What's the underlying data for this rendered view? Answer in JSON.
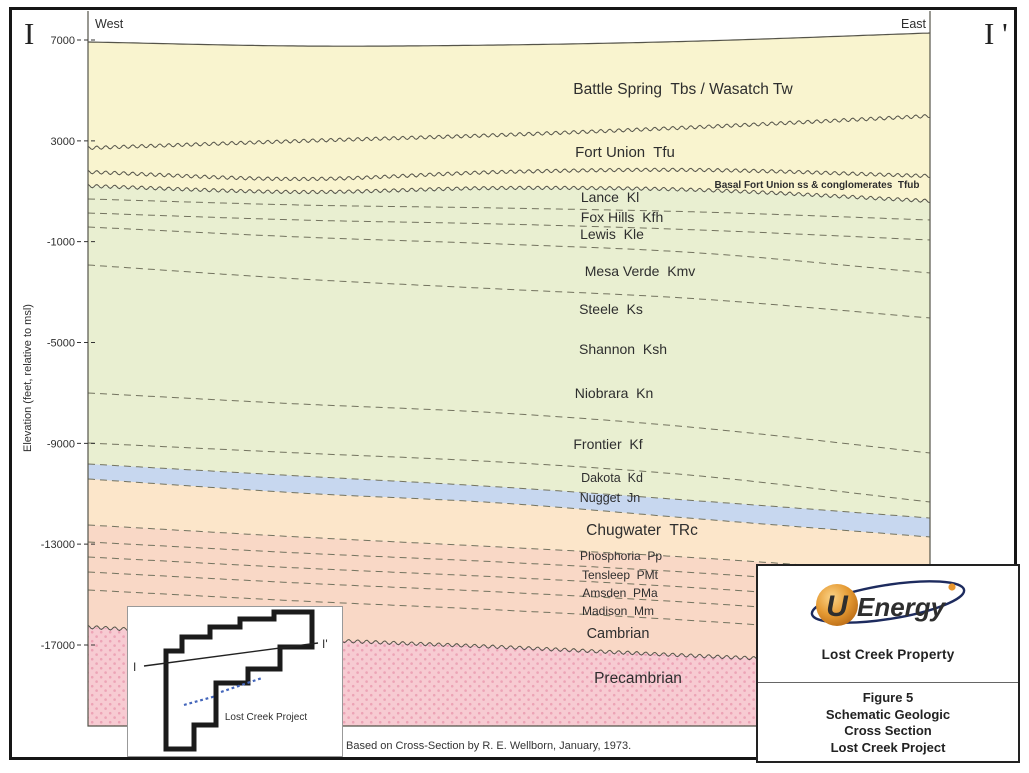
{
  "window": {
    "i_left": "I",
    "i_right": "I '"
  },
  "plot": {
    "west": "West",
    "east": "East"
  },
  "axis": {
    "title": "Elevation (feet, relative to msl)",
    "tick_values": [
      7000,
      3000,
      -1000,
      -5000,
      -9000,
      -13000,
      -17000
    ]
  },
  "formations": {
    "battle_spring": "Battle Spring  Tbs / Wasatch Tw",
    "fort_union": "Fort Union  Tfu",
    "basal_fu": "Basal Fort Union ss & conglomerates  Tfub",
    "lance": "Lance  Kl",
    "fox_hills": "Fox Hills  Kfh",
    "lewis": "Lewis  Kle",
    "mesa_verde": "Mesa Verde  Kmv",
    "steele": "Steele  Ks",
    "shannon": "Shannon  Ksh",
    "niobrara": "Niobrara  Kn",
    "frontier": "Frontier  Kf",
    "dakota": "Dakota  Kd",
    "nugget": "Nugget  Jn",
    "chugwater": "Chugwater  TRc",
    "phosphoria": "Phosphoria  Pp",
    "tensleep": "Tensleep  PMt",
    "amsden": "Amsden  PMa",
    "madison": "Madison  Mm",
    "cambrian": "Cambrian",
    "precambrian": "Precambrian"
  },
  "inset": {
    "i": "I",
    "i_prime": "I'",
    "label": "Lost Creek Project"
  },
  "legend": {
    "logo_u": "U",
    "logo_text": "Energy",
    "property": "Lost Creek Property",
    "figure_lines": [
      "Figure 5",
      "Schematic Geologic",
      "Cross Section",
      "Lost Creek Project"
    ]
  },
  "source_note": "Based on Cross-Section by R. E. Wellborn, January, 1973.",
  "colors": {
    "tertiary": "#F9F4CF",
    "cretaceous": "#E9EFD1",
    "nugget": "#C7D7EF",
    "chugwater": "#FCE6CA",
    "paleozoic": "#F9D8C6",
    "precambrian": "#F7CBD2",
    "precambrian_dot": "#ECA4B6",
    "line": "#55544A",
    "dash": "#73735F",
    "navy": "#1D2B5E",
    "orange": "#E8962E"
  }
}
